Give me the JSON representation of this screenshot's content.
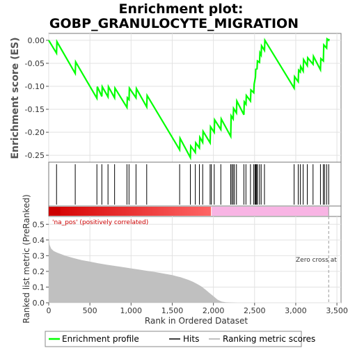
{
  "chart_data": {
    "type": "line",
    "title_line1": "Enrichment plot:",
    "title_line2": "GOBP_GRANULOCYTE_MIGRATION",
    "es_panel": {
      "ylabel": "Enrichment score (ES)",
      "ylim": [
        -0.265,
        0.015
      ],
      "yticks": [
        0.0,
        -0.05,
        -0.1,
        -0.15,
        -0.2,
        -0.25
      ],
      "ytick_labels": [
        "0.00",
        "-0.05",
        "-0.10",
        "-0.15",
        "-0.20",
        "-0.25"
      ],
      "grid": true,
      "line_color": "#00ff00",
      "series": {
        "name": "Enrichment profile",
        "x": [
          0,
          95,
          100,
          322,
          327,
          585,
          590,
          645,
          650,
          720,
          725,
          800,
          805,
          950,
          955,
          975,
          980,
          1060,
          1065,
          1190,
          1195,
          1590,
          1595,
          1720,
          1725,
          1780,
          1785,
          1830,
          1835,
          1870,
          1875,
          1960,
          1965,
          2010,
          2015,
          2090,
          2095,
          2210,
          2215,
          2240,
          2245,
          2280,
          2285,
          2370,
          2375,
          2395,
          2400,
          2450,
          2455,
          2490,
          2495,
          2510,
          2515,
          2530,
          2535,
          2560,
          2565,
          2580,
          2585,
          2620,
          2625,
          2980,
          2985,
          3030,
          3035,
          3055,
          3060,
          3090,
          3095,
          3140,
          3145,
          3210,
          3215,
          3300,
          3305,
          3335,
          3340,
          3375,
          3380,
          3400,
          3405
        ],
        "y": [
          0.0,
          -0.028,
          -0.003,
          -0.072,
          -0.047,
          -0.126,
          -0.101,
          -0.122,
          -0.101,
          -0.123,
          -0.101,
          -0.125,
          -0.104,
          -0.146,
          -0.125,
          -0.129,
          -0.104,
          -0.125,
          -0.105,
          -0.145,
          -0.12,
          -0.238,
          -0.213,
          -0.255,
          -0.23,
          -0.244,
          -0.223,
          -0.234,
          -0.211,
          -0.222,
          -0.198,
          -0.223,
          -0.188,
          -0.2,
          -0.173,
          -0.194,
          -0.171,
          -0.209,
          -0.164,
          -0.171,
          -0.148,
          -0.158,
          -0.132,
          -0.162,
          -0.134,
          -0.139,
          -0.12,
          -0.132,
          -0.108,
          -0.114,
          -0.095,
          -0.08,
          -0.063,
          -0.062,
          -0.045,
          -0.048,
          -0.027,
          -0.032,
          -0.012,
          -0.022,
          0.0,
          -0.104,
          -0.079,
          -0.09,
          -0.065,
          -0.069,
          -0.057,
          -0.067,
          -0.042,
          -0.055,
          -0.038,
          -0.052,
          -0.035,
          -0.064,
          -0.04,
          -0.045,
          -0.01,
          -0.017,
          0.003,
          0.0,
          0.003
        ]
      }
    },
    "hits_panel": {
      "legend_label": "Hits",
      "x": [
        95,
        322,
        585,
        645,
        720,
        800,
        950,
        975,
        1060,
        1190,
        1590,
        1720,
        1780,
        1830,
        1870,
        1960,
        1975,
        2010,
        2090,
        2210,
        2225,
        2240,
        2255,
        2280,
        2370,
        2395,
        2450,
        2490,
        2505,
        2515,
        2525,
        2535,
        2560,
        2580,
        2620,
        2980,
        3030,
        3055,
        3090,
        3140,
        3210,
        3300,
        3335,
        3350,
        3375,
        3400
      ]
    },
    "ranking_panel": {
      "ylabel": "Ranked list metric (PreRanked)",
      "xlabel": "Rank in Ordered Dataset",
      "xlim": [
        0,
        3550
      ],
      "ylim": [
        0,
        0.55
      ],
      "xticks": [
        0,
        500,
        1000,
        1500,
        2000,
        2500,
        3000,
        3500
      ],
      "xtick_labels": [
        "0",
        "500",
        "1,000",
        "1,500",
        "2,000",
        "2,500",
        "3,000",
        "3,500"
      ],
      "yticks": [
        0.0,
        0.1,
        0.2,
        0.3,
        0.4,
        0.5
      ],
      "ytick_labels": [
        "0.0",
        "0.1",
        "0.2",
        "0.3",
        "0.4",
        "0.5"
      ],
      "fill_color": "#c0c0c0",
      "series": {
        "name": "Ranking metric scores",
        "x": [
          0,
          10,
          30,
          60,
          100,
          150,
          200,
          300,
          400,
          500,
          600,
          700,
          800,
          900,
          1000,
          1100,
          1200,
          1300,
          1400,
          1500,
          1600,
          1700,
          1750,
          1800,
          1850,
          1900,
          1950,
          2000,
          2050,
          2100,
          2150,
          2200,
          2250,
          2300,
          3400
        ],
        "y": [
          0.42,
          0.37,
          0.345,
          0.33,
          0.32,
          0.31,
          0.3,
          0.285,
          0.272,
          0.262,
          0.252,
          0.243,
          0.235,
          0.227,
          0.219,
          0.211,
          0.203,
          0.195,
          0.186,
          0.176,
          0.163,
          0.145,
          0.134,
          0.12,
          0.105,
          0.085,
          0.063,
          0.042,
          0.02,
          0.007,
          0.003,
          0.002,
          0.001,
          0.0,
          0.0
        ]
      },
      "annotation_pos": "'na_pos' (positively correlated)",
      "annotation_pos_color": "#cc0000",
      "annotation_zero": "Zero cross at",
      "zero_cross_x": 3400
    },
    "colorbar": {
      "total": 3400,
      "split": 1975,
      "pos_colors": [
        "#d40000",
        "#ff6666"
      ],
      "neg_color": "#f8b4e4"
    },
    "legend": [
      "Enrichment profile",
      "Hits",
      "Ranking metric scores"
    ]
  }
}
